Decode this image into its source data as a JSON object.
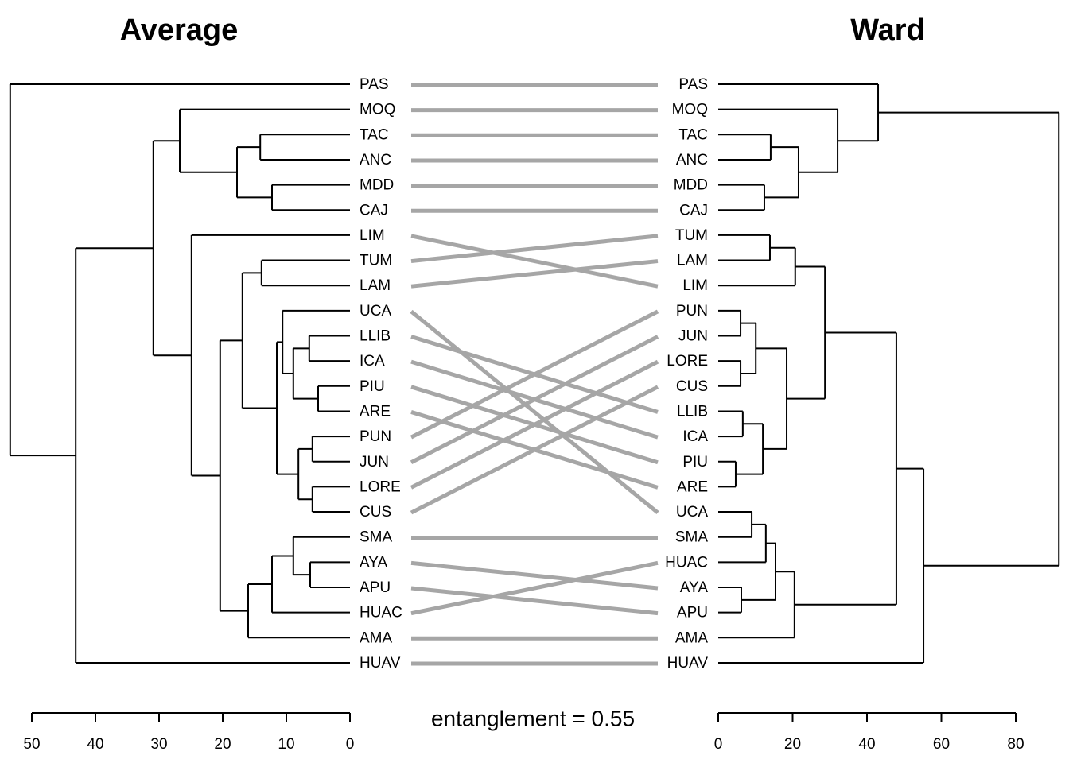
{
  "chart_data": {
    "type": "tanglegram",
    "annotation": "entanglement = 0.55",
    "connector_color": "#a6a6a6",
    "left": {
      "title": "Average",
      "xlim": [
        0,
        50
      ],
      "xticks": [
        0,
        10,
        20,
        30,
        40,
        50
      ],
      "tree": {
        "height": 53.4,
        "children": [
          "PAS",
          {
            "height": 43.1,
            "children": [
              {
                "height": 30.9,
                "children": [
                  {
                    "height": 26.75,
                    "children": [
                      "MOQ",
                      {
                        "height": 17.75,
                        "children": [
                          {
                            "height": 14.1,
                            "children": [
                              "TAC",
                              "ANC"
                            ]
                          },
                          {
                            "height": 12.25,
                            "children": [
                              "MDD",
                              "CAJ"
                            ]
                          }
                        ]
                      }
                    ]
                  },
                  {
                    "height": 24.9,
                    "children": [
                      "LIM",
                      {
                        "height": 20.4,
                        "children": [
                          {
                            "height": 16.9,
                            "children": [
                              {
                                "height": 13.9,
                                "children": [
                                  "TUM",
                                  "LAM"
                                ]
                              },
                              {
                                "height": 11.5,
                                "children": [
                                  {
                                    "height": 10.6,
                                    "children": [
                                      "UCA",
                                      {
                                        "height": 8.9,
                                        "children": [
                                          {
                                            "height": 6.4,
                                            "children": [
                                              "LLIB",
                                              "ICA"
                                            ]
                                          },
                                          {
                                            "height": 5,
                                            "children": [
                                              "PIU",
                                              "ARE"
                                            ]
                                          }
                                        ]
                                      }
                                    ]
                                  },
                                  {
                                    "height": 8.1,
                                    "children": [
                                      {
                                        "height": 5.9,
                                        "children": [
                                          "PUN",
                                          "JUN"
                                        ]
                                      },
                                      {
                                        "height": 5.9,
                                        "children": [
                                          "LORE",
                                          "CUS"
                                        ]
                                      }
                                    ]
                                  }
                                ]
                              }
                            ]
                          },
                          {
                            "height": 16,
                            "children": [
                              {
                                "height": 12.25,
                                "children": [
                                  {
                                    "height": 8.9,
                                    "children": [
                                      "SMA",
                                      {
                                        "height": 6.25,
                                        "children": [
                                          "AYA",
                                          "APU"
                                        ]
                                      }
                                    ]
                                  },
                                  "HUAC"
                                ]
                              },
                              "AMA"
                            ]
                          }
                        ]
                      }
                    ]
                  }
                ]
              },
              "HUAV"
            ]
          }
        ]
      }
    },
    "right": {
      "title": "Ward",
      "xlim": [
        0,
        80
      ],
      "xticks": [
        0,
        20,
        40,
        60,
        80
      ],
      "tree": {
        "height": 91.6,
        "children": [
          {
            "height": 43,
            "children": [
              "PAS",
              {
                "height": 32.1,
                "children": [
                  "MOQ",
                  {
                    "height": 21.6,
                    "children": [
                      {
                        "height": 14.1,
                        "children": [
                          "TAC",
                          "ANC"
                        ]
                      },
                      {
                        "height": 12.4,
                        "children": [
                          "MDD",
                          "CAJ"
                        ]
                      }
                    ]
                  }
                ]
              }
            ]
          },
          {
            "height": 55.2,
            "children": [
              {
                "height": 47.9,
                "children": [
                  {
                    "height": 28.7,
                    "children": [
                      {
                        "height": 20.7,
                        "children": [
                          {
                            "height": 13.9,
                            "children": [
                              "TUM",
                              "LAM"
                            ]
                          },
                          "LIM"
                        ]
                      },
                      {
                        "height": 18.4,
                        "children": [
                          {
                            "height": 10.1,
                            "children": [
                              {
                                "height": 6,
                                "children": [
                                  "PUN",
                                  "JUN"
                                ]
                              },
                              {
                                "height": 6,
                                "children": [
                                  "LORE",
                                  "CUS"
                                ]
                              }
                            ]
                          },
                          {
                            "height": 12,
                            "children": [
                              {
                                "height": 6.6,
                                "children": [
                                  "LLIB",
                                  "ICA"
                                ]
                              },
                              {
                                "height": 4.7,
                                "children": [
                                  "PIU",
                                  "ARE"
                                ]
                              }
                            ]
                          }
                        ]
                      }
                    ]
                  },
                  {
                    "height": 20.5,
                    "children": [
                      {
                        "height": 15.4,
                        "children": [
                          {
                            "height": 12.8,
                            "children": [
                              {
                                "height": 9,
                                "children": [
                                  "UCA",
                                  "SMA"
                                ]
                              },
                              "HUAC"
                            ]
                          },
                          {
                            "height": 6.2,
                            "children": [
                              "AYA",
                              "APU"
                            ]
                          }
                        ]
                      },
                      "AMA"
                    ]
                  }
                ]
              },
              "HUAV"
            ]
          }
        ]
      }
    }
  }
}
